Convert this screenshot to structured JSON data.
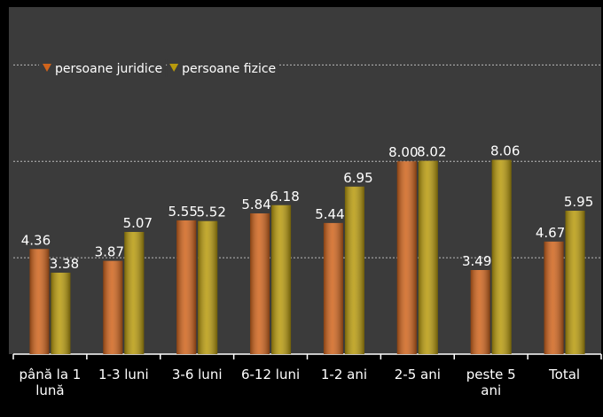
{
  "chart_data": {
    "type": "bar",
    "categories": [
      "până la 1 lună",
      "1-3 luni",
      "3-6 luni",
      "6-12 luni",
      "1-2 ani",
      "2-5 ani",
      "peste 5 ani",
      "Total"
    ],
    "series": [
      {
        "name": "persoane juridice",
        "color": "#d0641c",
        "values": [
          4.36,
          3.87,
          5.55,
          5.84,
          5.44,
          8.0,
          3.49,
          4.67
        ],
        "value_labels": [
          "4.36",
          "3.87",
          "5.55",
          "5.84",
          "5.44",
          "8.00",
          "3.49",
          "4.67"
        ]
      },
      {
        "name": "persoane fizice",
        "color": "#b89a0c",
        "values": [
          3.38,
          5.07,
          5.52,
          6.18,
          6.95,
          8.02,
          8.06,
          5.95
        ],
        "value_labels": [
          "3.38",
          "5.07",
          "5.52",
          "6.18",
          "6.95",
          "8.02",
          "8.06",
          "5.95"
        ]
      }
    ],
    "ylim": [
      0,
      14.4
    ],
    "yticks": [
      4,
      8,
      12
    ],
    "grid": true,
    "legend": "top-left"
  }
}
